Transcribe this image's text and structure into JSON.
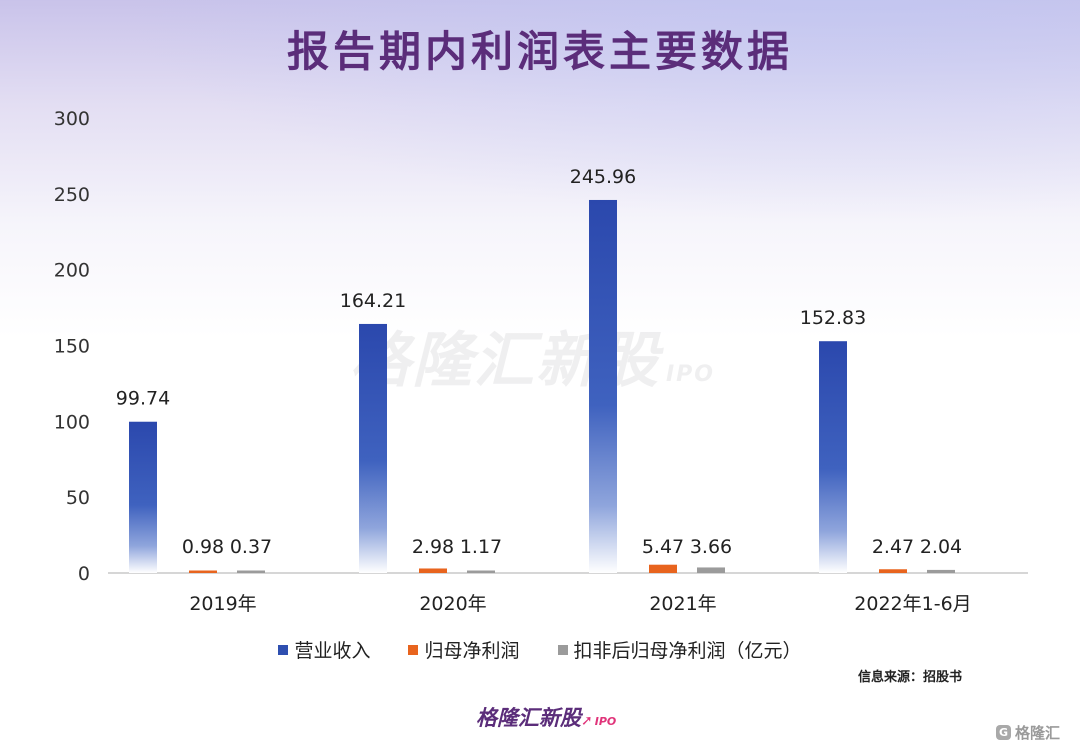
{
  "title": "报告期内利润表主要数据",
  "watermark": {
    "text": "格隆汇新股",
    "suffix": "IPO"
  },
  "source_note": "信息来源：招股书",
  "brand": {
    "text": "格隆汇新股",
    "suffix": "IPO"
  },
  "corner_logo": {
    "text": "格隆汇",
    "mark": "G"
  },
  "chart_data": {
    "type": "bar",
    "title": "报告期内利润表主要数据",
    "categories": [
      "2019年",
      "2020年",
      "2021年",
      "2022年1-6月"
    ],
    "series": [
      {
        "name": "营业收入",
        "values": [
          99.74,
          164.21,
          245.96,
          152.83
        ],
        "color": "#2e4fb0"
      },
      {
        "name": "归母净利润",
        "values": [
          0.98,
          2.98,
          5.47,
          2.47
        ],
        "color": "#e8641e"
      },
      {
        "name": "扣非后归母净利润（亿元）",
        "values": [
          0.37,
          1.17,
          3.66,
          2.04
        ],
        "color": "#9b9b9b"
      }
    ],
    "data_labels": [
      [
        "99.74",
        "164.21",
        "245.96",
        "152.83"
      ],
      [
        "0.98",
        "2.98",
        "5.47",
        "2.47"
      ],
      [
        "0.37",
        "1.17",
        "3.66",
        "2.04"
      ]
    ],
    "yticks": [
      0,
      50,
      100,
      150,
      200,
      250,
      300
    ],
    "ylim": [
      0,
      300
    ],
    "grid": false,
    "legend_position": "bottom"
  }
}
